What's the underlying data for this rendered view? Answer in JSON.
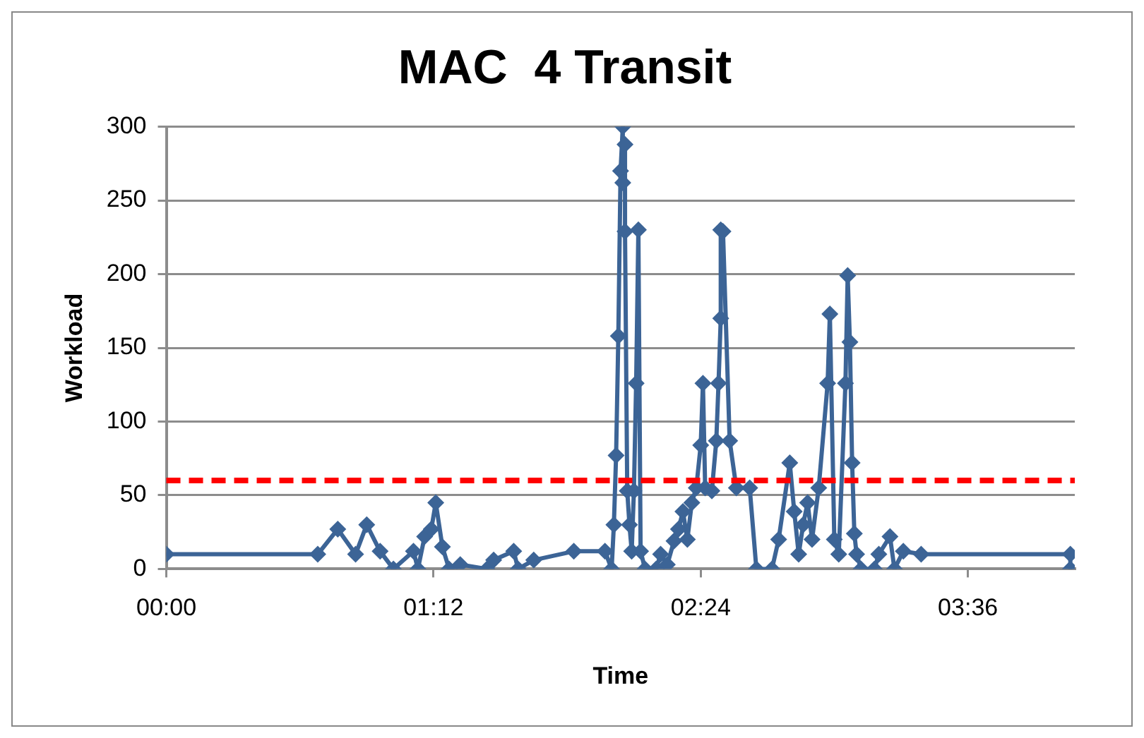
{
  "chart_data": {
    "type": "line",
    "title": "MAC  4 Transit",
    "xlabel": "Time",
    "ylabel": "Workload",
    "xlim": [
      0,
      4.08
    ],
    "xticks": [
      {
        "value": 0,
        "label": "00:00"
      },
      {
        "value": 1.2,
        "label": "01:12"
      },
      {
        "value": 2.4,
        "label": "02:24"
      },
      {
        "value": 3.6,
        "label": "03:36"
      }
    ],
    "ylim": [
      0,
      300
    ],
    "yticks": [
      0,
      50,
      100,
      150,
      200,
      250,
      300
    ],
    "grid": "y",
    "legend": false,
    "marker": "diamond",
    "line_style": "solid",
    "ref_lines": [
      {
        "axis": "y",
        "value": 60,
        "label": null,
        "color": "#ff0000",
        "line_style": "dashed"
      }
    ],
    "series": [
      {
        "color": "#3c6496",
        "x": [
          0,
          0.68,
          0.77,
          0.85,
          0.9,
          0.96,
          1.02,
          1.11,
          1.13,
          1.16,
          1.19,
          1.21,
          1.24,
          1.27,
          1.32,
          1.44,
          1.47,
          1.56,
          1.58,
          1.65,
          1.83,
          1.97,
          2.0,
          2.01,
          2.02,
          2.03,
          2.04,
          2.05,
          2.05,
          2.06,
          2.06,
          2.07,
          2.08,
          2.09,
          2.1,
          2.11,
          2.12,
          2.13,
          2.15,
          2.2,
          2.22,
          2.25,
          2.28,
          2.3,
          2.32,
          2.34,
          2.36,
          2.38,
          2.4,
          2.41,
          2.42,
          2.45,
          2.47,
          2.48,
          2.49,
          2.49,
          2.5,
          2.53,
          2.56,
          2.62,
          2.65,
          2.72,
          2.75,
          2.8,
          2.82,
          2.84,
          2.86,
          2.88,
          2.9,
          2.93,
          2.97,
          2.98,
          3.0,
          3.02,
          3.05,
          3.06,
          3.07,
          3.08,
          3.09,
          3.1,
          3.12,
          3.18,
          3.2,
          3.25,
          3.27,
          3.31,
          3.39,
          4.06,
          4.06
        ],
        "values": [
          10,
          10,
          27,
          10,
          30,
          12,
          0,
          12,
          0,
          22,
          27,
          45,
          15,
          0,
          3,
          0,
          6,
          12,
          0,
          6,
          12,
          12,
          0,
          30,
          77,
          158,
          270,
          300,
          262,
          288,
          229,
          53,
          30,
          12,
          53,
          126,
          230,
          12,
          0,
          0,
          10,
          3,
          19,
          27,
          39,
          20,
          45,
          55,
          84,
          126,
          55,
          53,
          87,
          126,
          170,
          230,
          229,
          87,
          55,
          55,
          0,
          0,
          20,
          72,
          39,
          10,
          30,
          45,
          20,
          55,
          126,
          173,
          20,
          10,
          126,
          199,
          154,
          72,
          24,
          10,
          0,
          0,
          10,
          22,
          0,
          12,
          10,
          10,
          0
        ]
      }
    ]
  }
}
